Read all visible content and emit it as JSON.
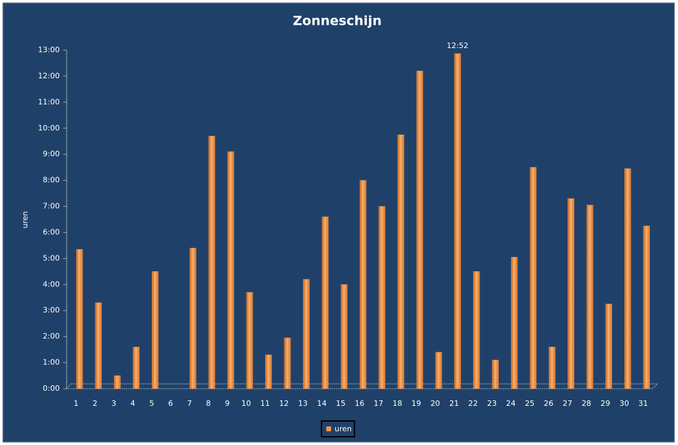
{
  "chart_data": {
    "type": "bar",
    "title": "Zonneschijn",
    "y_label": "uren",
    "categories": [
      "1",
      "2",
      "3",
      "4",
      "5",
      "6",
      "7",
      "8",
      "9",
      "10",
      "11",
      "12",
      "13",
      "14",
      "15",
      "16",
      "17",
      "18",
      "19",
      "20",
      "21",
      "22",
      "23",
      "24",
      "25",
      "26",
      "27",
      "28",
      "29",
      "30",
      "31"
    ],
    "series": [
      {
        "name": "uren",
        "color": "#f79646",
        "values": [
          5.35,
          3.3,
          0.5,
          1.6,
          4.5,
          0,
          5.4,
          9.7,
          9.1,
          3.7,
          1.3,
          1.95,
          4.2,
          6.6,
          4.0,
          8.0,
          7.0,
          9.75,
          12.2,
          1.4,
          12.8667,
          4.5,
          1.1,
          5.05,
          8.5,
          1.6,
          7.3,
          7.05,
          3.25,
          8.45,
          6.25
        ],
        "value_labels": [
          null,
          null,
          null,
          null,
          null,
          null,
          null,
          null,
          null,
          null,
          null,
          null,
          null,
          null,
          null,
          null,
          null,
          null,
          null,
          null,
          "12:52",
          null,
          null,
          null,
          null,
          null,
          null,
          null,
          null,
          null,
          null
        ]
      }
    ],
    "ylim": [
      0,
      13
    ],
    "yticks": [
      {
        "value": 0,
        "label": "0:00"
      },
      {
        "value": 1,
        "label": "1:00"
      },
      {
        "value": 2,
        "label": "2:00"
      },
      {
        "value": 3,
        "label": "3:00"
      },
      {
        "value": 4,
        "label": "4:00"
      },
      {
        "value": 5,
        "label": "5:00"
      },
      {
        "value": 6,
        "label": "6:00"
      },
      {
        "value": 7,
        "label": "7:00"
      },
      {
        "value": 8,
        "label": "8:00"
      },
      {
        "value": 9,
        "label": "9:00"
      },
      {
        "value": 10,
        "label": "10:00"
      },
      {
        "value": 11,
        "label": "11:00"
      },
      {
        "value": 12,
        "label": "12:00"
      },
      {
        "value": 13,
        "label": "13:00"
      }
    ],
    "legend": "bottom"
  }
}
